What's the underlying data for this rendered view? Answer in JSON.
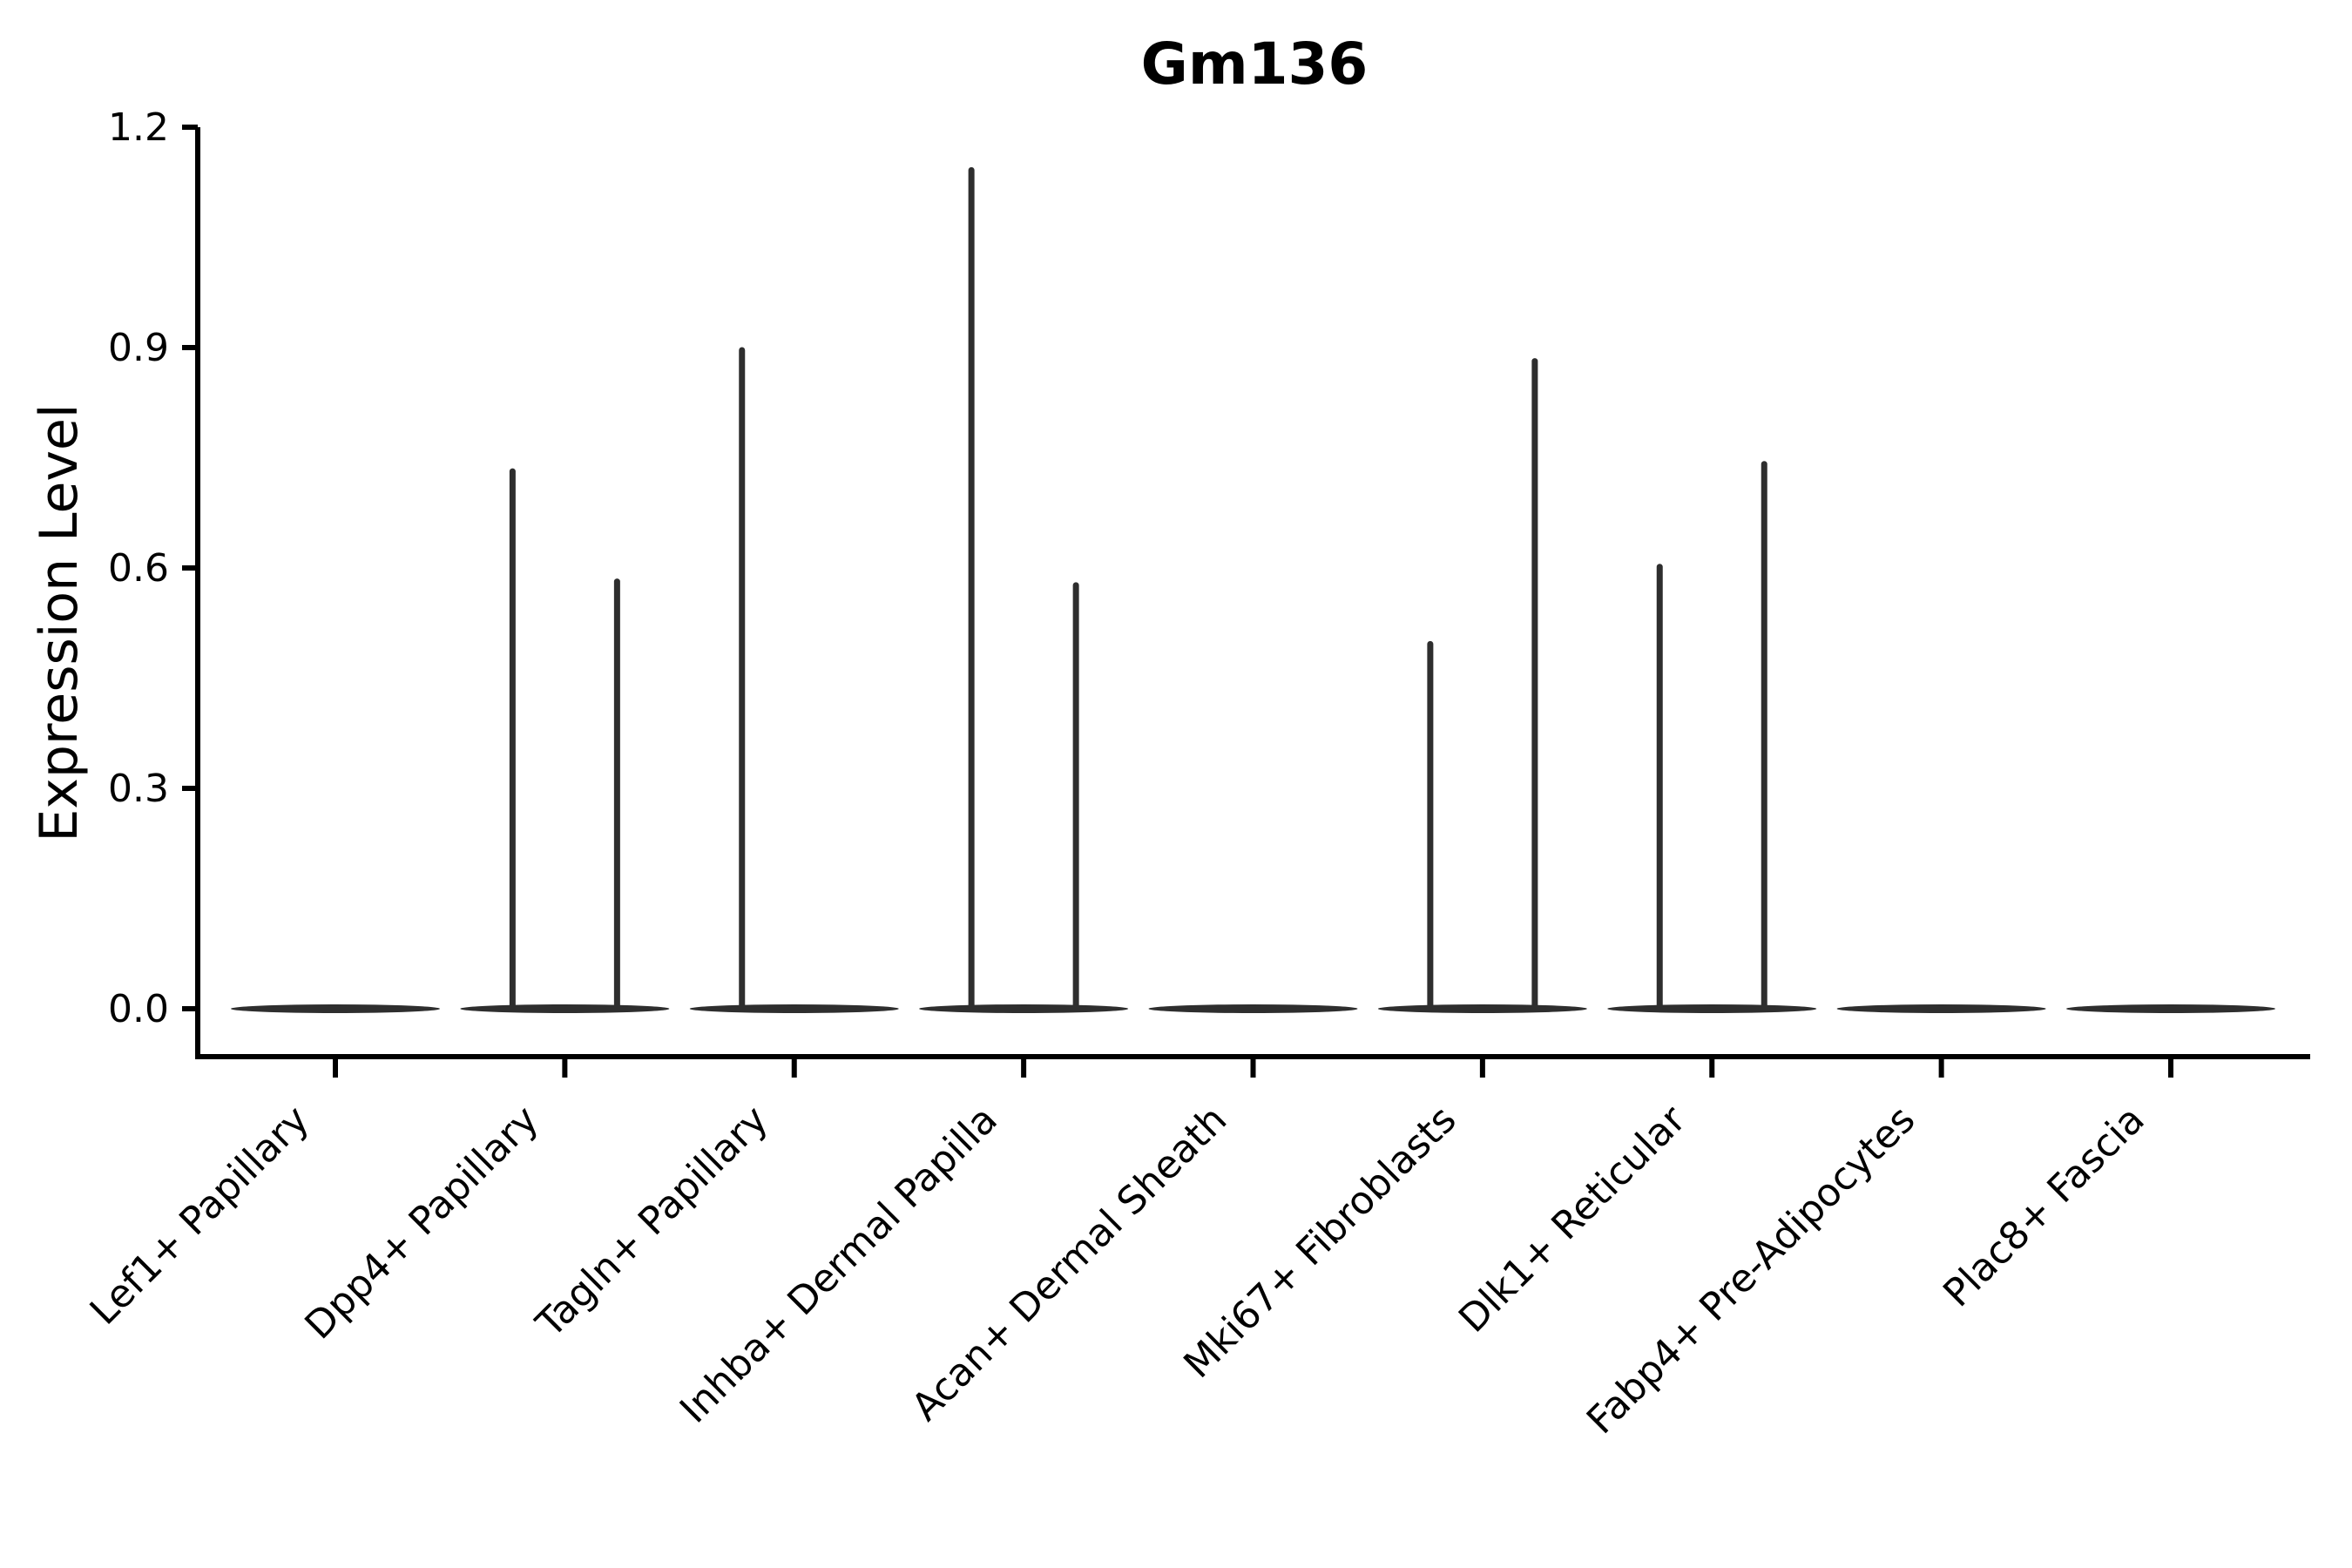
{
  "figure": {
    "background": "#ffffff",
    "text_color": "#000000",
    "spine_color": "#000000",
    "violin_color": "#2e2e2e"
  },
  "chart_data": {
    "type": "violin",
    "title": "Gm136",
    "xlabel": "",
    "ylabel": "Expression Level",
    "ylim": [
      0,
      1.2
    ],
    "yticks": [
      0.0,
      0.3,
      0.6,
      0.9,
      1.2
    ],
    "ytick_labels": [
      "0.0",
      "0.3",
      "0.6",
      "0.9",
      "1.2"
    ],
    "grid": false,
    "legend": null,
    "categories": [
      "Lef1+ Papillary",
      "Dpp4+ Papillary",
      "Tagln+ Papillary",
      "Inhba+ Dermal Papilla",
      "Acan+ Dermal Sheath",
      "Mki67+ Fibroblasts",
      "Dlk1+ Reticular",
      "Fabp4+ Pre-Adipocytes",
      "Plac8+ Fascia"
    ],
    "baseline_value": 0.0,
    "series": [
      {
        "name": "left-subviolin-max",
        "values": [
          0,
          0.735,
          0.9,
          1.145,
          0,
          0.5,
          0.605,
          0,
          0
        ]
      },
      {
        "name": "right-subviolin-max",
        "values": [
          0,
          0.585,
          0,
          0.58,
          0,
          0.885,
          0.745,
          0,
          0
        ]
      }
    ]
  }
}
